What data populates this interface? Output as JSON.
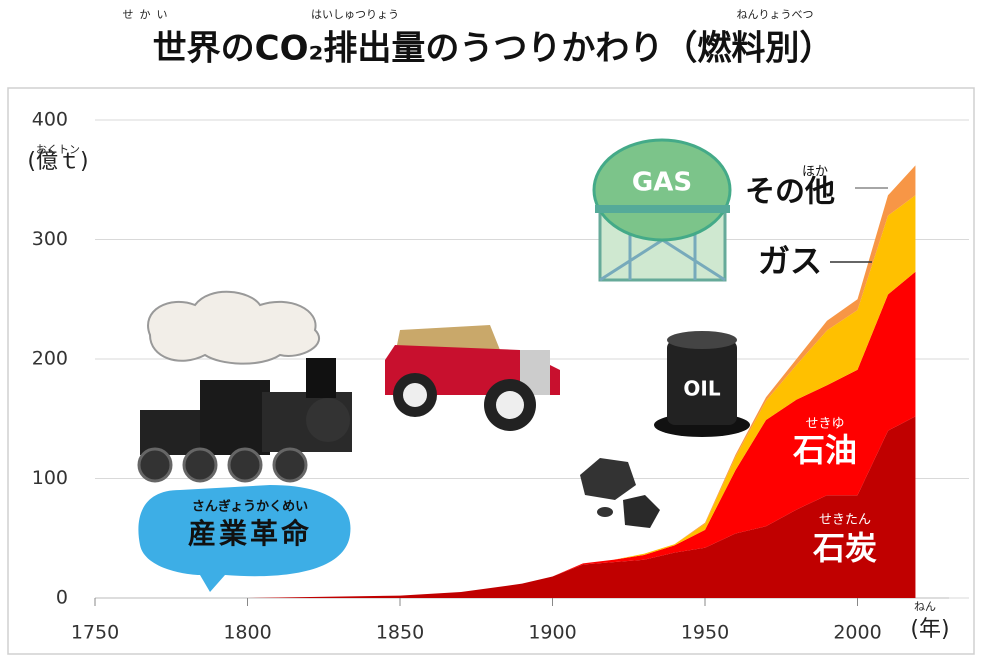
{
  "chart_data": {
    "type": "area",
    "title": "世界のCO₂排出量のうつりかわり（燃料別）",
    "title_ruby": [
      "せかい",
      "はいしゅつりょう",
      "ねんりょうべつ"
    ],
    "y_label": "(億ｔ)",
    "y_label_ruby": "おくトン",
    "x_label": "(年)",
    "x_label_ruby": "ねん",
    "x": [
      1750,
      1800,
      1850,
      1870,
      1890,
      1900,
      1910,
      1920,
      1930,
      1940,
      1950,
      1960,
      1970,
      1980,
      1990,
      2000,
      2010,
      2019
    ],
    "series": [
      {
        "name": "石炭",
        "ruby": "せきたん",
        "color": "#c00000",
        "values": [
          0,
          0,
          2,
          5,
          12,
          18,
          28,
          30,
          32,
          38,
          42,
          54,
          60,
          74,
          86,
          86,
          140,
          152
        ]
      },
      {
        "name": "石油",
        "ruby": "せきゆ",
        "color": "#ff0000",
        "values": [
          0,
          0,
          0,
          0,
          0,
          0,
          1,
          2,
          4,
          6,
          15,
          53,
          89,
          92,
          92,
          105,
          114,
          121
        ]
      },
      {
        "name": "ガス",
        "color": "#ffc000",
        "values": [
          0,
          0,
          0,
          0,
          0,
          0,
          0,
          0,
          1,
          1,
          5,
          11,
          16,
          29,
          46,
          50,
          66,
          64
        ]
      },
      {
        "name": "その他",
        "ruby": "ほか",
        "color": "#f79646",
        "values": [
          0,
          0,
          0,
          0,
          0,
          0,
          0,
          0,
          0,
          0,
          1,
          2,
          3,
          5,
          8,
          9,
          17,
          25
        ]
      }
    ],
    "annotations": {
      "industrial_revolution": "産業革命",
      "industrial_revolution_ruby": "さんぎょうかくめい",
      "gas_tank": "GAS",
      "oil_drum": "OIL"
    },
    "xlim": [
      1750,
      2030
    ],
    "ylim": [
      0,
      400
    ],
    "xticks": [
      1750,
      1800,
      1850,
      1900,
      1950,
      2000
    ],
    "yticks": [
      0,
      100,
      200,
      300,
      400
    ],
    "grid": true
  }
}
